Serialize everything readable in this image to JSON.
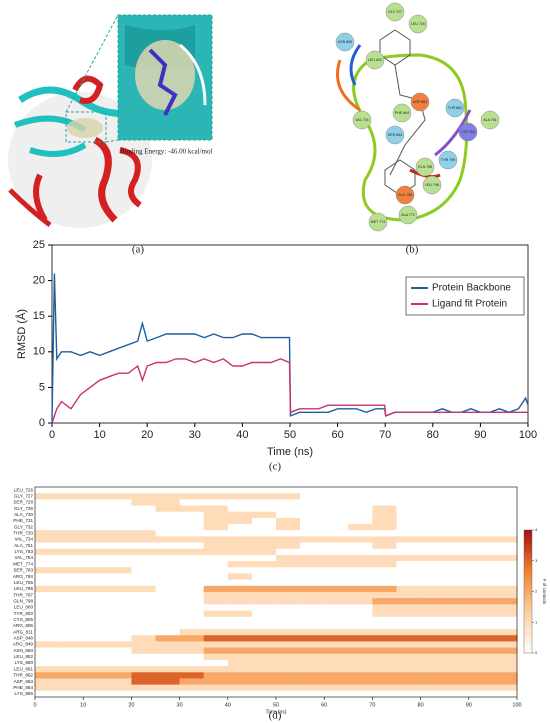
{
  "panel_a": {
    "annotation": "Binding Energy: -46.00 kcal/mol"
  },
  "panel_b": {
    "residues": [
      "GLY 727",
      "LEU 726",
      "ASN 856",
      "LEU 832",
      "VAL 734",
      "ALA 751",
      "THR 862",
      "LYS 753",
      "ASP 863",
      "PHE 864",
      "SER 863",
      "THR 799",
      "GLN 798",
      "LEU 796",
      "GLU 795",
      "ALA 772",
      "MET 774"
    ]
  },
  "panel_labels": [
    "(a)",
    "(b)",
    "(c)",
    "(d)"
  ],
  "chart_data": [
    {
      "type": "line",
      "xlabel": "Time (ns)",
      "ylabel": "RMSD (Å)",
      "x": [
        0,
        0.5,
        1,
        2,
        4,
        6,
        8,
        10,
        12,
        14,
        16,
        18,
        19,
        20,
        22,
        24,
        26,
        28,
        30,
        32,
        34,
        36,
        38,
        40,
        42,
        44,
        46,
        48,
        49.9,
        50.1,
        52,
        54,
        56,
        58,
        60,
        62,
        64,
        66,
        68,
        69.9,
        70.1,
        72,
        74,
        76,
        78,
        80,
        82,
        84,
        86,
        88,
        90,
        92,
        94,
        96,
        98,
        99.5,
        100
      ],
      "series": [
        {
          "name": "Protein Backbone",
          "color": "#1f5fa0",
          "values": [
            0,
            21,
            9,
            10,
            10,
            9.5,
            10,
            9.5,
            10,
            10.5,
            11,
            11.5,
            14,
            11.5,
            12,
            12.5,
            12.5,
            12.5,
            12.5,
            12,
            12.5,
            12,
            12,
            12.5,
            12.5,
            12,
            12,
            12,
            12,
            1,
            1.5,
            1.5,
            1.5,
            1.5,
            2,
            2,
            2,
            1.5,
            2,
            2,
            1,
            1.5,
            1.5,
            1.5,
            1.5,
            1.5,
            2,
            1.5,
            1.5,
            2,
            1.5,
            1.5,
            2,
            1.5,
            2,
            3.5,
            2.5
          ]
        },
        {
          "name": "Ligand fit Protein",
          "color": "#c8326e",
          "values": [
            0,
            1,
            2,
            3,
            2,
            4,
            5,
            6,
            6.5,
            7,
            7,
            8,
            6,
            8,
            8.5,
            8.5,
            9,
            9,
            8.5,
            9,
            8.5,
            9,
            8,
            8,
            8.5,
            8.5,
            8.5,
            9,
            8.5,
            1.5,
            2,
            2,
            2,
            2.5,
            2.5,
            2.5,
            2.5,
            2.5,
            2.5,
            2.5,
            1,
            1.5,
            1.5,
            1.5,
            1.5,
            1.5,
            1.5,
            1.5,
            1.5,
            1.5,
            1.5,
            1.5,
            1.5,
            1.5,
            1.5,
            1.5,
            1.5
          ]
        }
      ],
      "xlim": [
        0,
        100
      ],
      "xticks": [
        0,
        10,
        20,
        30,
        40,
        50,
        60,
        70,
        80,
        90,
        100
      ],
      "ylim": [
        0,
        25
      ],
      "yticks": [
        0,
        5,
        10,
        15,
        20,
        25
      ],
      "legend": "top-right"
    },
    {
      "type": "heatmap",
      "xlabel": "Time (ns)",
      "colorbar_label": "# of contacts",
      "bins": [
        0,
        5,
        10,
        15,
        20,
        25,
        30,
        35,
        40,
        45,
        50,
        55,
        60,
        65,
        70,
        75,
        80,
        85,
        90,
        95,
        100
      ],
      "categories": [
        "LEU_726",
        "GLY_727",
        "SER_728",
        "GLY_729",
        "ALA_730",
        "PHE_731",
        "GLY_732",
        "THR_733",
        "VAL_734",
        "ALA_751",
        "LYS_753",
        "VAL_754",
        "MET_774",
        "SER_783",
        "ARG_784",
        "LEU_785",
        "LEU_796",
        "THR_797",
        "GLN_798",
        "LEU_800",
        "TYR_803",
        "CYS_805",
        "ARG_806",
        "ARG_811",
        "ASP_848",
        "ARG_849",
        "ASN_850",
        "LEU_852",
        "LYS_860",
        "LEU_861",
        "THR_862",
        "ASP_863",
        "PHE_864",
        "LYS_866"
      ],
      "z": [
        [
          0,
          0,
          0,
          0,
          0,
          0,
          0,
          0,
          0,
          0,
          0,
          0,
          0,
          0,
          0,
          0,
          0,
          0,
          0,
          0
        ],
        [
          1,
          1,
          1,
          1,
          1,
          1,
          1,
          1,
          1,
          1,
          1,
          0,
          0,
          0,
          0,
          0,
          0,
          0,
          0,
          0
        ],
        [
          0,
          0,
          0,
          0,
          1,
          1,
          0,
          0,
          0,
          0,
          0,
          0,
          0,
          0,
          0,
          0,
          0,
          0,
          0,
          0
        ],
        [
          0,
          0,
          0,
          0,
          0,
          1,
          1,
          1,
          0,
          0,
          0,
          0,
          0,
          0,
          1,
          0,
          0,
          0,
          0,
          0
        ],
        [
          0,
          0,
          0,
          0,
          0,
          0,
          0,
          1,
          1,
          1,
          0,
          0,
          0,
          0,
          1,
          0,
          0,
          0,
          0,
          0
        ],
        [
          0,
          0,
          0,
          0,
          0,
          0,
          0,
          1,
          1,
          0,
          1,
          0,
          0,
          0,
          1,
          0,
          0,
          0,
          0,
          0
        ],
        [
          0,
          0,
          0,
          0,
          0,
          0,
          0,
          1,
          0,
          0,
          1,
          0,
          0,
          1,
          1,
          0,
          0,
          0,
          0,
          0
        ],
        [
          1,
          1,
          1,
          1,
          1,
          0,
          0,
          0,
          0,
          0,
          0,
          0,
          0,
          0,
          0,
          0,
          0,
          0,
          0,
          0
        ],
        [
          1,
          1,
          1,
          1,
          1,
          1,
          1,
          1,
          1,
          1,
          1,
          1,
          1,
          1,
          1,
          1,
          1,
          1,
          1,
          1
        ],
        [
          0,
          0,
          0,
          0,
          0,
          0,
          0,
          1,
          1,
          1,
          1,
          0,
          0,
          0,
          1,
          0,
          0,
          0,
          0,
          0
        ],
        [
          1,
          1,
          1,
          1,
          1,
          1,
          1,
          1,
          1,
          1,
          0,
          0,
          0,
          0,
          0,
          0,
          0,
          0,
          0,
          0
        ],
        [
          0,
          0,
          0,
          0,
          0,
          0,
          0,
          0,
          0,
          0,
          1,
          1,
          1,
          1,
          1,
          1,
          1,
          1,
          1,
          1
        ],
        [
          0,
          0,
          0,
          0,
          0,
          0,
          0,
          0,
          1,
          1,
          1,
          1,
          1,
          1,
          1,
          0,
          0,
          0,
          0,
          0
        ],
        [
          1,
          1,
          1,
          1,
          0,
          0,
          0,
          0,
          0,
          0,
          0,
          0,
          0,
          0,
          0,
          0,
          0,
          0,
          0,
          0
        ],
        [
          0,
          0,
          0,
          0,
          0,
          0,
          0,
          0,
          1,
          0,
          0,
          0,
          0,
          0,
          0,
          0,
          0,
          0,
          0,
          0
        ],
        [
          0,
          0,
          0,
          0,
          0,
          0,
          0,
          0,
          0,
          0,
          0,
          0,
          0,
          0,
          0,
          0,
          0,
          0,
          0,
          0
        ],
        [
          1,
          1,
          1,
          1,
          1,
          0,
          0,
          2,
          2,
          2,
          2,
          2,
          2,
          2,
          2,
          1,
          1,
          1,
          1,
          1
        ],
        [
          0,
          0,
          0,
          0,
          0,
          0,
          0,
          1,
          1,
          1,
          1,
          1,
          1,
          1,
          1,
          1,
          1,
          1,
          1,
          1
        ],
        [
          0,
          0,
          0,
          0,
          0,
          0,
          0,
          1,
          1,
          1,
          1,
          1,
          1,
          1,
          2,
          2,
          2,
          2,
          2,
          2
        ],
        [
          0,
          0,
          0,
          0,
          0,
          0,
          0,
          0,
          0,
          0,
          0,
          0,
          0,
          0,
          1,
          1,
          1,
          1,
          1,
          1
        ],
        [
          0,
          0,
          0,
          0,
          0,
          0,
          0,
          1,
          1,
          0,
          0,
          0,
          0,
          0,
          1,
          1,
          1,
          1,
          1,
          1
        ],
        [
          0,
          0,
          0,
          0,
          0,
          0,
          0,
          0,
          0,
          0,
          0,
          0,
          0,
          0,
          0,
          0,
          0,
          0,
          0,
          0
        ],
        [
          0,
          0,
          0,
          0,
          0,
          0,
          0,
          0,
          0,
          0,
          0,
          0,
          0,
          0,
          0,
          0,
          0,
          0,
          0,
          0
        ],
        [
          0,
          0,
          0,
          0,
          0,
          0,
          1,
          1,
          1,
          1,
          1,
          1,
          1,
          1,
          1,
          1,
          1,
          1,
          1,
          1
        ],
        [
          0,
          0,
          0,
          0,
          1,
          2,
          2,
          3,
          3,
          3,
          3,
          3,
          3,
          3,
          3,
          3,
          3,
          3,
          3,
          3
        ],
        [
          1,
          1,
          1,
          1,
          1,
          1,
          1,
          1,
          1,
          1,
          1,
          1,
          1,
          1,
          1,
          1,
          1,
          1,
          1,
          1
        ],
        [
          0,
          0,
          0,
          0,
          1,
          1,
          1,
          2,
          2,
          2,
          2,
          2,
          2,
          2,
          2,
          2,
          2,
          2,
          2,
          2
        ],
        [
          0,
          0,
          0,
          0,
          0,
          0,
          0,
          1,
          1,
          1,
          1,
          1,
          1,
          1,
          1,
          1,
          1,
          1,
          1,
          1
        ],
        [
          0,
          0,
          0,
          0,
          0,
          0,
          0,
          0,
          1,
          1,
          1,
          1,
          1,
          1,
          1,
          1,
          1,
          1,
          1,
          1
        ],
        [
          1,
          1,
          1,
          1,
          1,
          1,
          1,
          1,
          1,
          1,
          1,
          1,
          1,
          1,
          1,
          1,
          1,
          1,
          1,
          1
        ],
        [
          2,
          2,
          2,
          2,
          3,
          3,
          3,
          2,
          2,
          2,
          2,
          2,
          2,
          2,
          2,
          2,
          2,
          2,
          2,
          2
        ],
        [
          1,
          1,
          1,
          1,
          3,
          3,
          2,
          2,
          2,
          2,
          2,
          2,
          2,
          2,
          2,
          2,
          2,
          2,
          2,
          2
        ],
        [
          1,
          1,
          1,
          1,
          1,
          1,
          1,
          1,
          1,
          1,
          1,
          1,
          1,
          1,
          1,
          1,
          1,
          1,
          1,
          1
        ],
        [
          0,
          0,
          0,
          0,
          0,
          0,
          0,
          0,
          0,
          0,
          0,
          0,
          0,
          0,
          0,
          0,
          0,
          0,
          0,
          0
        ]
      ],
      "colors": [
        "#ffffff",
        "#fdd0a2",
        "#f08030",
        "#a50f15"
      ],
      "clim": [
        0,
        4
      ],
      "cticks": [
        0,
        1,
        2,
        3,
        4
      ],
      "xlim": [
        0,
        100
      ],
      "xticks": [
        0,
        10,
        20,
        30,
        40,
        50,
        60,
        70,
        80,
        90,
        100
      ]
    }
  ]
}
